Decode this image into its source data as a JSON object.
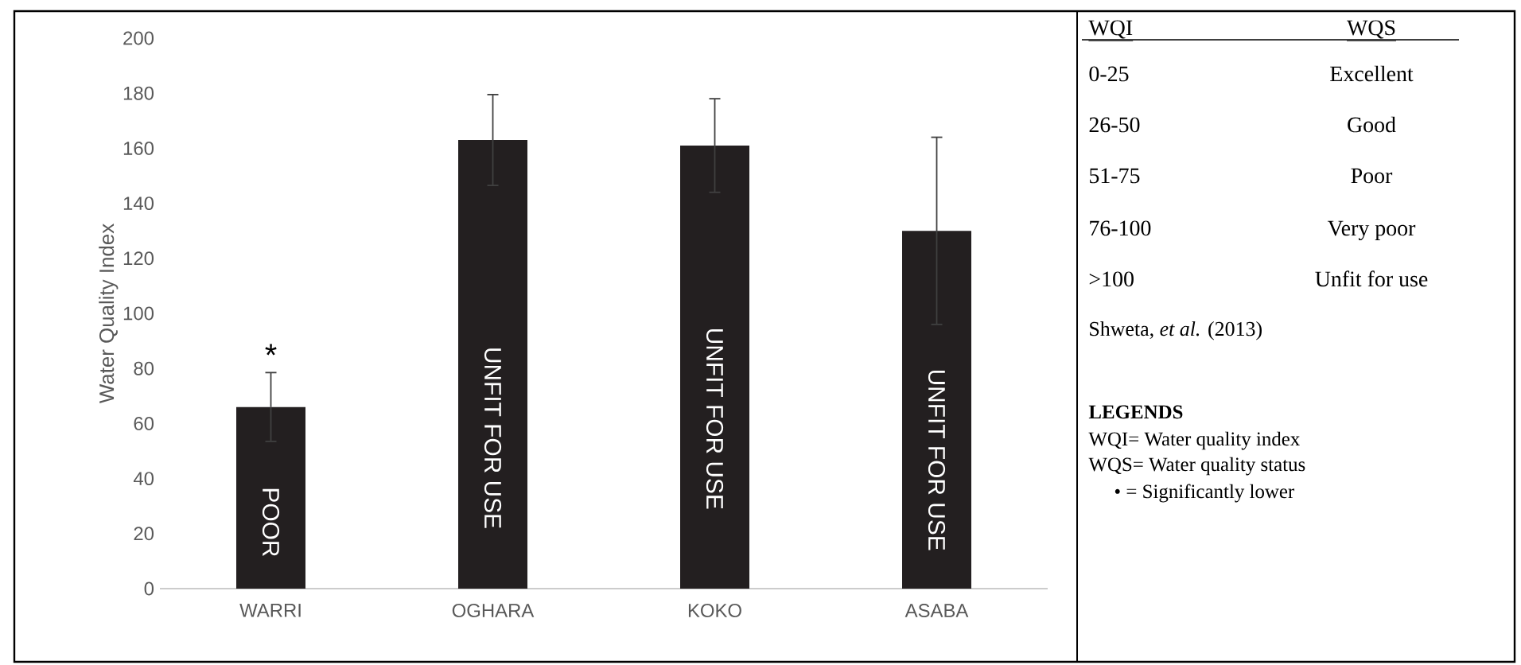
{
  "chart_data": {
    "type": "bar",
    "ylabel": "Water Quality Index",
    "categories": [
      "WARRI",
      "OGHARA",
      "KOKO",
      "ASABA"
    ],
    "values": [
      66,
      163,
      161,
      130
    ],
    "errors": [
      12.5,
      16.5,
      17,
      34
    ],
    "color": "#231f20",
    "ylim": [
      0,
      200
    ],
    "yticks": [
      0,
      20,
      40,
      60,
      80,
      100,
      120,
      140,
      160,
      180,
      200
    ],
    "annotations": [
      "POOR",
      "UNFIT FOR USE",
      "UNFIT FOR USE",
      "UNFIT FOR USE",
      "*",
      "WQI",
      "WQS",
      "0-25",
      "Excellent",
      "26-50",
      "Good",
      "51-75",
      "Poor",
      "76-100",
      "Very poor",
      ">100",
      "Unfit for use",
      "Shweta, *et al.* (2013)",
      "LEGENDS",
      "WQI= Water quality index",
      "WQS= Water quality status",
      "•    = Significantly lower"
    ]
  }
}
